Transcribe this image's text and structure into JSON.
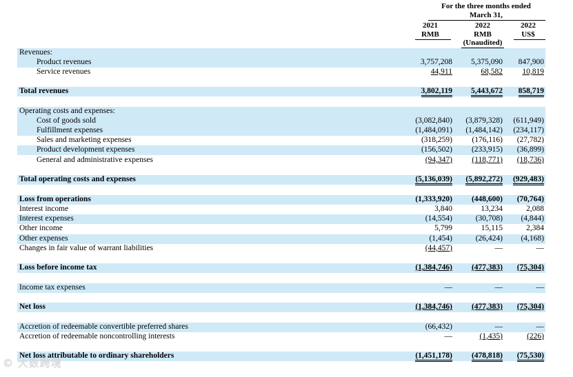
{
  "header": {
    "period_line1": "For the three months ended",
    "period_line2": "March 31,",
    "columns": [
      {
        "year": "2021",
        "currency": "RMB",
        "note": ""
      },
      {
        "year": "2022",
        "currency": "RMB",
        "note": "(Unaudited)"
      },
      {
        "year": "2022",
        "currency": "US$",
        "note": ""
      }
    ]
  },
  "rows": [
    {
      "label": "Revenues:",
      "values": [
        "",
        "",
        ""
      ]
    },
    {
      "label": "Product revenues",
      "values": [
        "3,757,208",
        "5,375,090",
        "847,900"
      ]
    },
    {
      "label": "Service revenues",
      "values": [
        "44,911",
        "68,582",
        "10,819"
      ]
    },
    {
      "label": "Total revenues",
      "values": [
        "3,802,119",
        "5,443,672",
        "858,719"
      ]
    },
    {
      "label": "Operating costs and expenses:",
      "values": [
        "",
        "",
        ""
      ]
    },
    {
      "label": "Cost of goods sold",
      "values": [
        "(3,082,840)",
        "(3,879,328)",
        "(611,949)"
      ]
    },
    {
      "label": "Fulfillment expenses",
      "values": [
        "(1,484,091)",
        "(1,484,142)",
        "(234,117)"
      ]
    },
    {
      "label": "Sales and marketing expenses",
      "values": [
        "(318,259)",
        "(176,116)",
        "(27,782)"
      ]
    },
    {
      "label": "Product development expenses",
      "values": [
        "(156,502)",
        "(233,915)",
        "(36,899)"
      ]
    },
    {
      "label": "General and administrative expenses",
      "values": [
        "(94,347)",
        "(118,771)",
        "(18,736)"
      ]
    },
    {
      "label": "Total operating costs and expenses",
      "values": [
        "(5,136,039)",
        "(5,892,272)",
        "(929,483)"
      ]
    },
    {
      "label": "Loss from operations",
      "values": [
        "(1,333,920)",
        "(448,600)",
        "(70,764)"
      ]
    },
    {
      "label": "Interest income",
      "values": [
        "3,840",
        "13,234",
        "2,088"
      ]
    },
    {
      "label": "Interest expenses",
      "values": [
        "(14,554)",
        "(30,708)",
        "(4,844)"
      ]
    },
    {
      "label": "Other income",
      "values": [
        "5,799",
        "15,115",
        "2,384"
      ]
    },
    {
      "label": "Other expenses",
      "values": [
        "(1,454)",
        "(26,424)",
        "(4,168)"
      ]
    },
    {
      "label": "Changes in fair value of warrant liabilities",
      "values": [
        "(44,457)",
        "—",
        "—"
      ]
    },
    {
      "label": "Loss before income tax",
      "values": [
        "(1,384,746)",
        "(477,383)",
        "(75,304)"
      ]
    },
    {
      "label": "Income tax expenses",
      "values": [
        "—",
        "—",
        "—"
      ]
    },
    {
      "label": "Net loss",
      "values": [
        "(1,384,746)",
        "(477,383)",
        "(75,304)"
      ]
    },
    {
      "label": "Accretion of redeemable convertible preferred shares",
      "values": [
        "(66,432)",
        "—",
        "—"
      ]
    },
    {
      "label": "Accretion of redeemable noncontrolling interests",
      "values": [
        "—",
        "(1,435)",
        "(226)"
      ]
    },
    {
      "label": "Net loss attributable to ordinary shareholders",
      "values": [
        "(1,451,178)",
        "(478,818)",
        "(75,530)"
      ]
    }
  ],
  "watermark": "© 大数跨境"
}
